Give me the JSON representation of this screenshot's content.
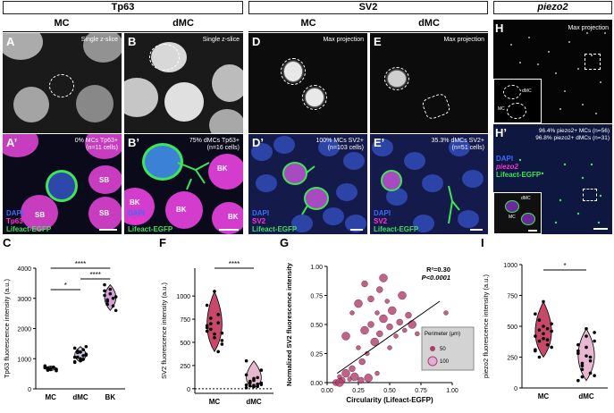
{
  "headers": {
    "tp63": "Tp63",
    "sv2": "SV2",
    "piezo2": "piezo2"
  },
  "subheaders": {
    "a": "MC",
    "b": "dMC",
    "d": "MC",
    "e": "dMC"
  },
  "panel_letters": {
    "A": "A",
    "B": "B",
    "D": "D",
    "E": "E",
    "H": "H",
    "A2": "A’",
    "B2": "B’",
    "D2": "D’",
    "E2": "E’",
    "H2": "H’",
    "C": "C",
    "F": "F",
    "G": "G",
    "I": "I"
  },
  "notes": {
    "A": "Single z-slice",
    "B": "Single z-slice",
    "D": "Max projection",
    "E": "Max projection",
    "H": "Max projection",
    "A2_1": "0% MCs Tp63+",
    "A2_2": "(n=11 cells)",
    "B2_1": "75% dMCs Tp63+",
    "B2_2": "(n=16 cells)",
    "D2_1": "100% MCs SV2+",
    "D2_2": "(n=103 cells)",
    "E2_1": "35.3% dMCs SV2+",
    "E2_2": "(n=51 cells)",
    "H2_1": "96.4% piezo2+ MCs (n=56)",
    "H2_2": "96.8% piezo2+ dMCs (n=31)"
  },
  "channels": {
    "dapi": "DAPI",
    "tp63": "Tp63",
    "sv2": "SV2",
    "piezo2": "piezo2",
    "lifeact": "Lifeact-EGFP"
  },
  "cell_labels": {
    "sb": "SB",
    "bk": "BK",
    "dmc": "dMC",
    "mc": "MC"
  },
  "colors": {
    "dapi": "#3b6cff",
    "magenta": "#ff2fd2",
    "green": "#3ee45a"
  },
  "chart_data": [
    {
      "type": "scatter",
      "panel": "C",
      "ylabel": "Tp63 fluorescence intensity (a.u.)",
      "ylim": [
        0,
        4000
      ],
      "yticks": [
        0,
        1000,
        2000,
        3000,
        4000
      ],
      "categories": [
        "MC",
        "dMC",
        "BK"
      ],
      "series": [
        {
          "category": "MC",
          "values": [
            700,
            620,
            680,
            720,
            650,
            760,
            690,
            640,
            710,
            600,
            730
          ]
        },
        {
          "category": "dMC",
          "values": [
            1050,
            1200,
            950,
            1300,
            1150,
            880,
            1250,
            1000,
            1100,
            1400,
            900,
            1050,
            1220,
            980,
            1120,
            1350
          ]
        },
        {
          "category": "BK",
          "values": [
            3100,
            2800,
            3300,
            3000,
            2600,
            3450,
            2900,
            3150,
            2750,
            3050,
            3250,
            2950
          ]
        }
      ],
      "significance": [
        "*",
        "****",
        "****"
      ]
    },
    {
      "type": "scatter",
      "panel": "F",
      "ylabel": "SV2 fluorescence intensity (a.u.)",
      "ylim": [
        -50,
        1300
      ],
      "yticks": [
        0,
        250,
        500,
        750,
        1000
      ],
      "categories": [
        "MC",
        "dMC"
      ],
      "series": [
        {
          "category": "MC",
          "values": [
            620,
            700,
            550,
            800,
            480,
            900,
            640,
            590,
            710,
            520,
            660,
            760,
            1050,
            400,
            600,
            680
          ]
        },
        {
          "category": "dMC",
          "values": [
            40,
            80,
            20,
            120,
            60,
            150,
            30,
            90,
            50,
            200,
            10,
            70,
            110,
            25,
            45,
            300,
            65,
            35
          ]
        }
      ],
      "significance": [
        "****"
      ]
    },
    {
      "type": "scatter",
      "panel": "G",
      "xlabel": "Circularity (Lifeact-EGFP)",
      "ylabel": "Normalized SV2 fluorescence intensity",
      "xlim": [
        0,
        1.0
      ],
      "ylim": [
        0,
        1.0
      ],
      "xticks": [
        0.0,
        0.25,
        0.5,
        0.75,
        1.0
      ],
      "yticks": [
        0.0,
        0.25,
        0.5,
        0.75,
        1.0
      ],
      "annotation": {
        "r2": "R²=0.30",
        "p": "P<0.0001"
      },
      "legend": {
        "title": "Perimeter (μm)",
        "items": [
          "50",
          "100"
        ]
      },
      "fit": {
        "x": [
          0.08,
          0.9
        ],
        "y": [
          0.08,
          0.7
        ]
      },
      "points": [
        [
          0.1,
          0.05
        ],
        [
          0.12,
          0.02
        ],
        [
          0.15,
          0.08
        ],
        [
          0.18,
          0.03
        ],
        [
          0.2,
          0.12
        ],
        [
          0.22,
          0.05
        ],
        [
          0.25,
          0.3
        ],
        [
          0.28,
          0.18
        ],
        [
          0.3,
          0.45
        ],
        [
          0.32,
          0.25
        ],
        [
          0.35,
          0.5
        ],
        [
          0.38,
          0.35
        ],
        [
          0.4,
          0.6
        ],
        [
          0.42,
          0.42
        ],
        [
          0.45,
          0.55
        ],
        [
          0.48,
          0.7
        ],
        [
          0.5,
          0.48
        ],
        [
          0.52,
          0.62
        ],
        [
          0.55,
          0.4
        ],
        [
          0.58,
          0.52
        ],
        [
          0.6,
          0.75
        ],
        [
          0.62,
          0.45
        ],
        [
          0.65,
          0.58
        ],
        [
          0.68,
          0.5
        ],
        [
          0.72,
          0.42
        ],
        [
          0.3,
          0.85
        ],
        [
          0.45,
          0.9
        ],
        [
          0.2,
          0.6
        ],
        [
          0.35,
          0.72
        ],
        [
          0.15,
          0.4
        ],
        [
          0.5,
          0.3
        ],
        [
          0.27,
          0.02
        ],
        [
          0.33,
          0.04
        ],
        [
          0.4,
          0.08
        ],
        [
          0.07,
          0.0
        ],
        [
          0.1,
          0.0
        ],
        [
          0.95,
          0.6
        ],
        [
          0.42,
          0.8
        ],
        [
          0.25,
          0.68
        ]
      ]
    },
    {
      "type": "scatter",
      "panel": "I",
      "ylabel": "piezo2 fluorescence intensity (a.u.)",
      "ylim": [
        0,
        1000
      ],
      "yticks": [
        0,
        250,
        500,
        750,
        1000
      ],
      "categories": [
        "MC",
        "dMC"
      ],
      "series": [
        {
          "category": "MC",
          "values": [
            420,
            380,
            500,
            350,
            460,
            300,
            550,
            400,
            480,
            330,
            600,
            250,
            440,
            390,
            520,
            310,
            470,
            700
          ]
        },
        {
          "category": "dMC",
          "values": [
            300,
            150,
            420,
            250,
            100,
            350,
            200,
            480,
            120,
            380,
            280,
            90,
            330,
            220,
            450,
            60,
            180,
            260
          ]
        }
      ],
      "significance": [
        "*"
      ]
    }
  ]
}
